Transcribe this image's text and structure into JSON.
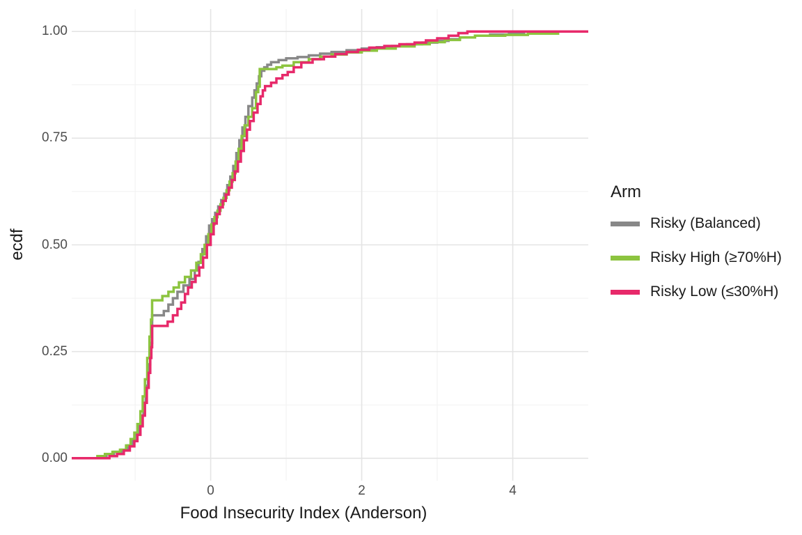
{
  "figure": {
    "background": "#ffffff"
  },
  "colors": {
    "tick_label": "#4d4d4d",
    "axis_title": "#1a1a1a",
    "grid_major": "#e4e4e4",
    "grid_minor": "#f1f1f1",
    "series_gray": "#888888",
    "series_green": "#8cc43f",
    "series_pink": "#e7296a"
  },
  "chart_data": {
    "type": "line",
    "variant": "ecdf_step",
    "title": "",
    "xlabel": "Food Insecurity Index (Anderson)",
    "ylabel": "ecdf",
    "xlim": [
      -1.84,
      5.0
    ],
    "ylim": [
      0,
      1
    ],
    "grid": "major and minor gridlines, light gray on white, no panel border",
    "x_ticks": [
      {
        "value": 0,
        "label": "0"
      },
      {
        "value": 2,
        "label": "2"
      },
      {
        "value": 4,
        "label": "4"
      }
    ],
    "x_minor": [
      -1,
      1,
      3
    ],
    "y_ticks": [
      {
        "value": 0.0,
        "label": "0.00"
      },
      {
        "value": 0.25,
        "label": "0.25"
      },
      {
        "value": 0.5,
        "label": "0.50"
      },
      {
        "value": 0.75,
        "label": "0.75"
      },
      {
        "value": 1.0,
        "label": "1.00"
      }
    ],
    "y_minor": [
      0.125,
      0.375,
      0.625,
      0.875
    ],
    "legend": {
      "title": "Arm",
      "position": "right"
    },
    "series": [
      {
        "name": "Risky (Balanced)",
        "color": "#888888",
        "points": [
          [
            -1.47,
            0.005
          ],
          [
            -1.38,
            0.01
          ],
          [
            -1.28,
            0.015
          ],
          [
            -1.18,
            0.02
          ],
          [
            -1.1,
            0.03
          ],
          [
            -1.04,
            0.04
          ],
          [
            -1.0,
            0.055
          ],
          [
            -0.96,
            0.075
          ],
          [
            -0.92,
            0.1
          ],
          [
            -0.89,
            0.13
          ],
          [
            -0.86,
            0.17
          ],
          [
            -0.83,
            0.22
          ],
          [
            -0.8,
            0.27
          ],
          [
            -0.775,
            0.335
          ],
          [
            -0.62,
            0.345
          ],
          [
            -0.56,
            0.36
          ],
          [
            -0.5,
            0.375
          ],
          [
            -0.44,
            0.39
          ],
          [
            -0.36,
            0.405
          ],
          [
            -0.28,
            0.42
          ],
          [
            -0.21,
            0.44
          ],
          [
            -0.16,
            0.46
          ],
          [
            -0.11,
            0.49
          ],
          [
            -0.06,
            0.52
          ],
          [
            -0.02,
            0.545
          ],
          [
            0.02,
            0.56
          ],
          [
            0.06,
            0.575
          ],
          [
            0.1,
            0.59
          ],
          [
            0.14,
            0.605
          ],
          [
            0.18,
            0.62
          ],
          [
            0.22,
            0.64
          ],
          [
            0.26,
            0.66
          ],
          [
            0.3,
            0.685
          ],
          [
            0.34,
            0.715
          ],
          [
            0.38,
            0.745
          ],
          [
            0.42,
            0.775
          ],
          [
            0.46,
            0.8
          ],
          [
            0.5,
            0.825
          ],
          [
            0.55,
            0.845
          ],
          [
            0.58,
            0.862
          ],
          [
            0.61,
            0.878
          ],
          [
            0.64,
            0.895
          ],
          [
            0.67,
            0.908
          ],
          [
            0.71,
            0.916
          ],
          [
            0.75,
            0.922
          ],
          [
            0.8,
            0.928
          ],
          [
            0.9,
            0.933
          ],
          [
            1.0,
            0.937
          ],
          [
            1.15,
            0.94
          ],
          [
            1.3,
            0.944
          ],
          [
            1.45,
            0.948
          ],
          [
            1.6,
            0.952
          ],
          [
            1.8,
            0.956
          ],
          [
            2.0,
            0.96
          ],
          [
            2.2,
            0.963
          ],
          [
            2.4,
            0.966
          ],
          [
            2.6,
            0.97
          ],
          [
            2.8,
            0.974
          ],
          [
            3.0,
            0.978
          ],
          [
            3.15,
            0.982
          ],
          [
            3.3,
            0.986
          ],
          [
            3.5,
            0.99
          ],
          [
            3.7,
            0.993
          ],
          [
            3.95,
            0.996
          ],
          [
            4.15,
            1.0
          ]
        ]
      },
      {
        "name": "Risky High (≥70%H)",
        "color": "#8cc43f",
        "points": [
          [
            -1.5,
            0.005
          ],
          [
            -1.4,
            0.01
          ],
          [
            -1.3,
            0.015
          ],
          [
            -1.2,
            0.02
          ],
          [
            -1.12,
            0.03
          ],
          [
            -1.06,
            0.045
          ],
          [
            -1.01,
            0.06
          ],
          [
            -0.97,
            0.08
          ],
          [
            -0.93,
            0.11
          ],
          [
            -0.9,
            0.145
          ],
          [
            -0.87,
            0.185
          ],
          [
            -0.84,
            0.235
          ],
          [
            -0.81,
            0.285
          ],
          [
            -0.79,
            0.325
          ],
          [
            -0.775,
            0.37
          ],
          [
            -0.64,
            0.38
          ],
          [
            -0.56,
            0.39
          ],
          [
            -0.49,
            0.4
          ],
          [
            -0.42,
            0.412
          ],
          [
            -0.34,
            0.425
          ],
          [
            -0.26,
            0.44
          ],
          [
            -0.19,
            0.458
          ],
          [
            -0.13,
            0.478
          ],
          [
            -0.08,
            0.5
          ],
          [
            -0.03,
            0.525
          ],
          [
            0.01,
            0.548
          ],
          [
            0.05,
            0.565
          ],
          [
            0.09,
            0.58
          ],
          [
            0.13,
            0.595
          ],
          [
            0.17,
            0.61
          ],
          [
            0.21,
            0.628
          ],
          [
            0.25,
            0.648
          ],
          [
            0.29,
            0.668
          ],
          [
            0.33,
            0.695
          ],
          [
            0.37,
            0.725
          ],
          [
            0.41,
            0.755
          ],
          [
            0.45,
            0.78
          ],
          [
            0.5,
            0.8
          ],
          [
            0.55,
            0.82
          ],
          [
            0.6,
            0.858
          ],
          [
            0.63,
            0.871
          ],
          [
            0.65,
            0.912
          ],
          [
            0.87,
            0.916
          ],
          [
            0.95,
            0.92
          ],
          [
            1.1,
            0.928
          ],
          [
            1.3,
            0.935
          ],
          [
            1.45,
            0.941
          ],
          [
            1.6,
            0.946
          ],
          [
            1.8,
            0.951
          ],
          [
            2.0,
            0.955
          ],
          [
            2.2,
            0.96
          ],
          [
            2.45,
            0.965
          ],
          [
            2.7,
            0.97
          ],
          [
            2.9,
            0.975
          ],
          [
            3.1,
            0.98
          ],
          [
            3.3,
            0.986
          ],
          [
            3.5,
            0.99
          ],
          [
            3.9,
            0.992
          ],
          [
            4.2,
            0.995
          ],
          [
            4.6,
            1.0
          ]
        ]
      },
      {
        "name": "Risky Low (≤30%H)",
        "color": "#e7296a",
        "points": [
          [
            -1.34,
            0.005
          ],
          [
            -1.24,
            0.01
          ],
          [
            -1.15,
            0.018
          ],
          [
            -1.07,
            0.028
          ],
          [
            -1.01,
            0.04
          ],
          [
            -0.97,
            0.055
          ],
          [
            -0.93,
            0.075
          ],
          [
            -0.9,
            0.1
          ],
          [
            -0.87,
            0.13
          ],
          [
            -0.845,
            0.165
          ],
          [
            -0.82,
            0.2
          ],
          [
            -0.8,
            0.235
          ],
          [
            -0.785,
            0.26
          ],
          [
            -0.775,
            0.31
          ],
          [
            -0.57,
            0.32
          ],
          [
            -0.5,
            0.335
          ],
          [
            -0.44,
            0.35
          ],
          [
            -0.39,
            0.365
          ],
          [
            -0.34,
            0.385
          ],
          [
            -0.3,
            0.4
          ],
          [
            -0.25,
            0.413
          ],
          [
            -0.2,
            0.428
          ],
          [
            -0.15,
            0.447
          ],
          [
            -0.1,
            0.47
          ],
          [
            -0.05,
            0.5
          ],
          [
            0.0,
            0.525
          ],
          [
            0.04,
            0.55
          ],
          [
            0.08,
            0.572
          ],
          [
            0.12,
            0.588
          ],
          [
            0.16,
            0.603
          ],
          [
            0.2,
            0.618
          ],
          [
            0.24,
            0.634
          ],
          [
            0.28,
            0.652
          ],
          [
            0.32,
            0.672
          ],
          [
            0.36,
            0.695
          ],
          [
            0.4,
            0.72
          ],
          [
            0.44,
            0.745
          ],
          [
            0.48,
            0.77
          ],
          [
            0.52,
            0.79
          ],
          [
            0.57,
            0.81
          ],
          [
            0.62,
            0.83
          ],
          [
            0.66,
            0.848
          ],
          [
            0.69,
            0.862
          ],
          [
            0.72,
            0.872
          ],
          [
            0.8,
            0.88
          ],
          [
            0.87,
            0.89
          ],
          [
            0.95,
            0.898
          ],
          [
            1.02,
            0.905
          ],
          [
            1.1,
            0.916
          ],
          [
            1.2,
            0.927
          ],
          [
            1.35,
            0.935
          ],
          [
            1.5,
            0.941
          ],
          [
            1.65,
            0.947
          ],
          [
            1.8,
            0.952
          ],
          [
            1.95,
            0.957
          ],
          [
            2.1,
            0.962
          ],
          [
            2.3,
            0.966
          ],
          [
            2.5,
            0.97
          ],
          [
            2.7,
            0.974
          ],
          [
            2.85,
            0.979
          ],
          [
            3.0,
            0.984
          ],
          [
            3.15,
            0.99
          ],
          [
            3.28,
            0.996
          ],
          [
            3.4,
            1.0
          ]
        ]
      }
    ]
  }
}
